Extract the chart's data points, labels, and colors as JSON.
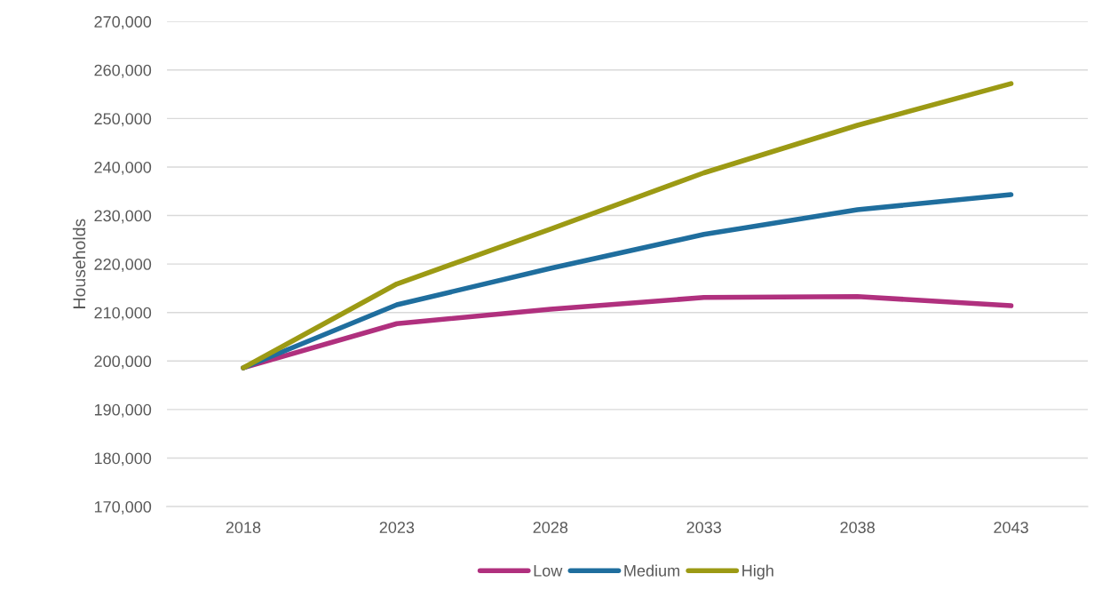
{
  "chart_data": {
    "type": "line",
    "ylabel": "Households",
    "categories": [
      "2018",
      "2023",
      "2028",
      "2033",
      "2038",
      "2043"
    ],
    "series": [
      {
        "name": "Low",
        "color": "#b0307e",
        "values": [
          198600,
          207700,
          210700,
          213100,
          213300,
          211400
        ]
      },
      {
        "name": "Medium",
        "color": "#1f6e9e",
        "values": [
          198600,
          211600,
          219100,
          226100,
          231200,
          234300
        ]
      },
      {
        "name": "High",
        "color": "#9c9a14",
        "values": [
          198600,
          215900,
          227200,
          238800,
          248600,
          257200
        ]
      }
    ],
    "ylim": [
      170000,
      270000
    ],
    "yticks": [
      {
        "value": 170000,
        "label": "170,000"
      },
      {
        "value": 180000,
        "label": "180,000"
      },
      {
        "value": 190000,
        "label": "190,000"
      },
      {
        "value": 200000,
        "label": "200,000"
      },
      {
        "value": 210000,
        "label": "210,000"
      },
      {
        "value": 220000,
        "label": "220,000"
      },
      {
        "value": 230000,
        "label": "230,000"
      },
      {
        "value": 240000,
        "label": "240,000"
      },
      {
        "value": 250000,
        "label": "250,000"
      },
      {
        "value": 260000,
        "label": "260,000"
      },
      {
        "value": 270000,
        "label": "270,000"
      }
    ],
    "grid": "y",
    "legend": "bottom",
    "marker": "none",
    "line_style": "solid"
  }
}
